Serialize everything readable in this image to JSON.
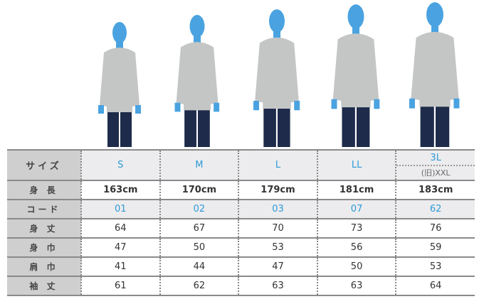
{
  "colors": {
    "accent": "#2f9ad6",
    "head": "#4aa3e0",
    "hoodie": "#c4c6c6",
    "jeans": "#1e2b4a"
  },
  "figures": [
    {
      "size": "S",
      "icon": "model-figure"
    },
    {
      "size": "M",
      "icon": "model-figure"
    },
    {
      "size": "L",
      "icon": "model-figure"
    },
    {
      "size": "LL",
      "icon": "model-figure"
    },
    {
      "size": "3L",
      "icon": "model-figure"
    }
  ],
  "table": {
    "header_label": "サイズ",
    "sizes": [
      "S",
      "M",
      "L",
      "LL",
      "3L"
    ],
    "size_sub": "(旧)XXL",
    "rows": [
      {
        "label": "身 長",
        "values": [
          "163cm",
          "170cm",
          "179cm",
          "181cm",
          "183cm"
        ]
      },
      {
        "label": "コード",
        "values": [
          "01",
          "02",
          "03",
          "07",
          "62"
        ]
      },
      {
        "label": "身 丈",
        "values": [
          "64",
          "67",
          "70",
          "73",
          "76"
        ]
      },
      {
        "label": "身 巾",
        "values": [
          "47",
          "50",
          "53",
          "56",
          "59"
        ]
      },
      {
        "label": "肩 巾",
        "values": [
          "41",
          "44",
          "47",
          "50",
          "53"
        ]
      },
      {
        "label": "袖 丈",
        "values": [
          "61",
          "62",
          "63",
          "63",
          "64"
        ]
      }
    ]
  }
}
